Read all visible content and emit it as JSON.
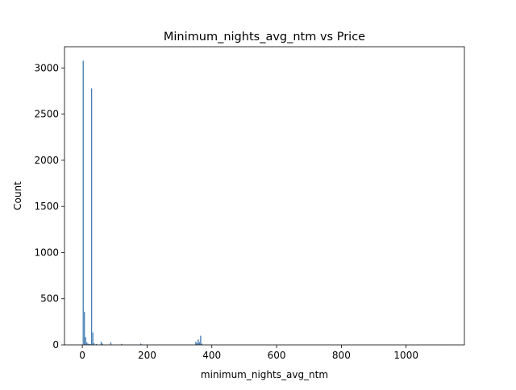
{
  "chart_data": {
    "type": "bar",
    "title": "Minimum_nights_avg_ntm vs Price",
    "xlabel": "minimum_nights_avg_ntm",
    "ylabel": "Count",
    "xlim": [
      -55,
      1180
    ],
    "ylim": [
      0,
      3230
    ],
    "xticks": [
      0,
      200,
      400,
      600,
      800,
      1000
    ],
    "yticks": [
      0,
      500,
      1000,
      1500,
      2000,
      2500,
      3000
    ],
    "bin_width": 3.7,
    "grid": false,
    "legend": "none",
    "color": "#3b75af",
    "bins": [
      {
        "x": 1.0,
        "count": 3080
      },
      {
        "x": 4.7,
        "count": 360
      },
      {
        "x": 8.4,
        "count": 85
      },
      {
        "x": 12.1,
        "count": 30
      },
      {
        "x": 15.8,
        "count": 15
      },
      {
        "x": 19.5,
        "count": 10
      },
      {
        "x": 23.2,
        "count": 8
      },
      {
        "x": 26.9,
        "count": 2780
      },
      {
        "x": 30.6,
        "count": 135
      },
      {
        "x": 34.3,
        "count": 20
      },
      {
        "x": 41.7,
        "count": 10
      },
      {
        "x": 56.5,
        "count": 35
      },
      {
        "x": 60.2,
        "count": 15
      },
      {
        "x": 86.1,
        "count": 30
      },
      {
        "x": 119.4,
        "count": 12
      },
      {
        "x": 178.6,
        "count": 15
      },
      {
        "x": 182.3,
        "count": 6
      },
      {
        "x": 348.7,
        "count": 35
      },
      {
        "x": 352.4,
        "count": 20
      },
      {
        "x": 356.1,
        "count": 60
      },
      {
        "x": 359.8,
        "count": 30
      },
      {
        "x": 363.5,
        "count": 100
      },
      {
        "x": 367.2,
        "count": 15
      },
      {
        "x": 1120.0,
        "count": 4
      }
    ]
  }
}
